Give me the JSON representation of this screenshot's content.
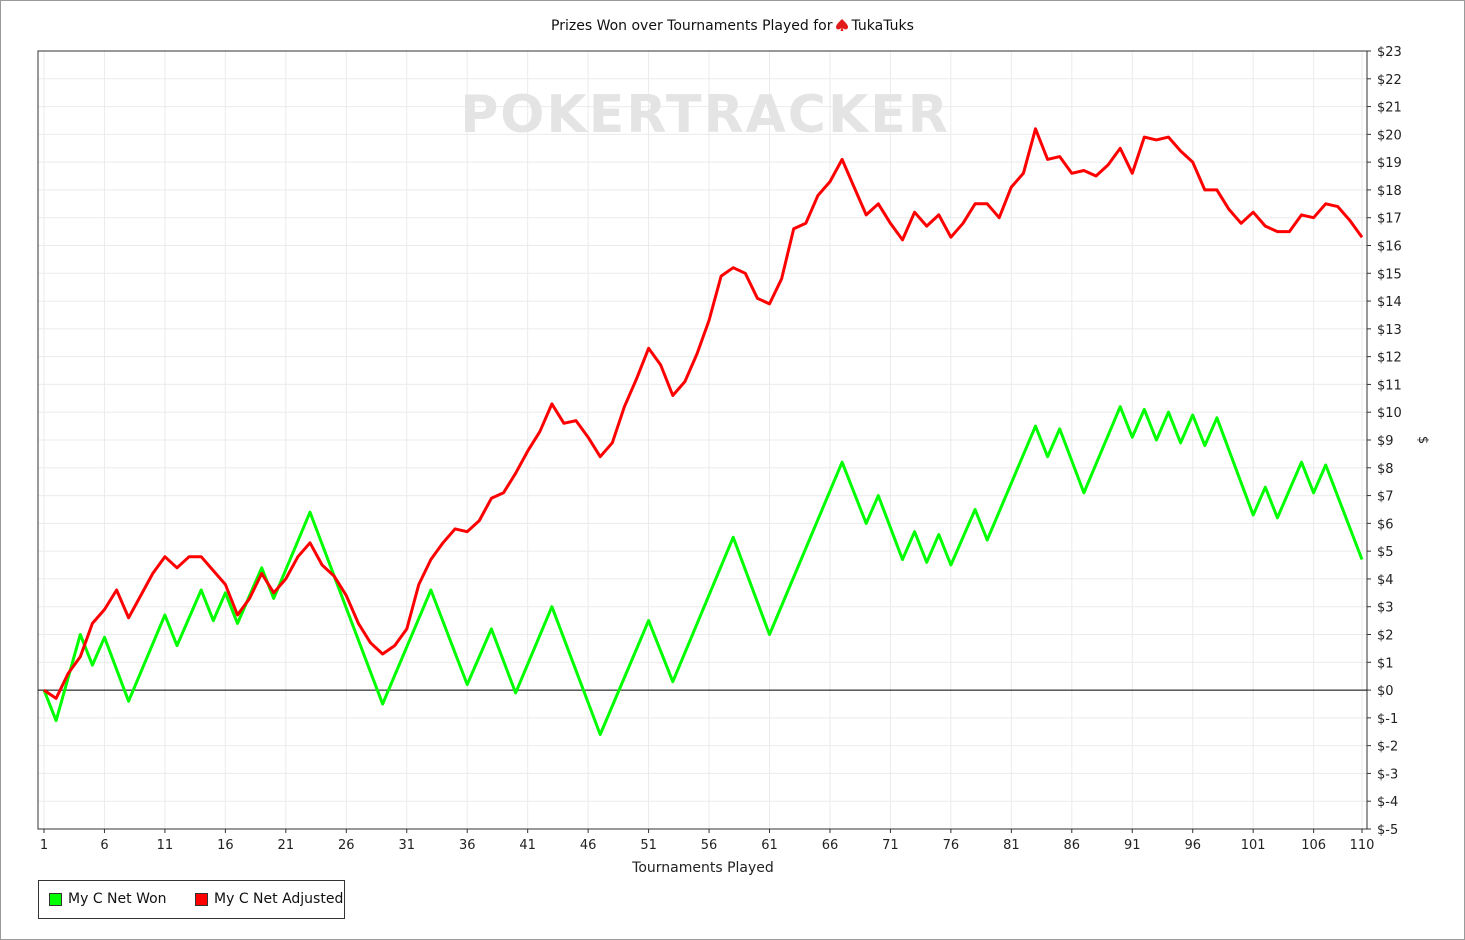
{
  "chart_data": {
    "type": "line",
    "title_prefix": "Prizes Won over Tournaments Played for",
    "player": "TukaTuks",
    "watermark": "POKERTRACKER",
    "xlabel": "Tournaments Played",
    "ylabel": "$",
    "xlim": [
      1,
      110
    ],
    "ylim": [
      -5,
      23
    ],
    "x_ticks": [
      "1",
      "6",
      "11",
      "16",
      "21",
      "26",
      "31",
      "36",
      "41",
      "46",
      "51",
      "56",
      "61",
      "66",
      "71",
      "76",
      "81",
      "86",
      "91",
      "96",
      "101",
      "106",
      "110"
    ],
    "y_ticks": [
      "$23",
      "$22",
      "$21",
      "$20",
      "$19",
      "$18",
      "$17",
      "$16",
      "$15",
      "$14",
      "$13",
      "$12",
      "$11",
      "$10",
      "$9",
      "$8",
      "$7",
      "$6",
      "$5",
      "$4",
      "$3",
      "$2",
      "$1",
      "$0",
      "$-1",
      "$-2",
      "$-3",
      "$-4",
      "$-5"
    ],
    "grid": true,
    "legend_position": "bottom-left",
    "series": [
      {
        "name": "My C Net Won",
        "color": "#00ff00",
        "points": [
          [
            1,
            0
          ],
          [
            2,
            -1.1
          ],
          [
            4,
            2
          ],
          [
            5,
            0.9
          ],
          [
            6,
            1.9
          ],
          [
            8,
            -0.4
          ],
          [
            11,
            2.7
          ],
          [
            12,
            1.6
          ],
          [
            14,
            3.6
          ],
          [
            15,
            2.5
          ],
          [
            16,
            3.5
          ],
          [
            17,
            2.4
          ],
          [
            19,
            4.4
          ],
          [
            20,
            3.3
          ],
          [
            23,
            6.4
          ],
          [
            29,
            -0.5
          ],
          [
            33,
            3.6
          ],
          [
            36,
            0.2
          ],
          [
            38,
            2.2
          ],
          [
            40,
            -0.1
          ],
          [
            43,
            3
          ],
          [
            47,
            -1.6
          ],
          [
            51,
            2.5
          ],
          [
            53,
            0.3
          ],
          [
            58,
            5.5
          ],
          [
            61,
            2
          ],
          [
            67,
            8.2
          ],
          [
            69,
            6
          ],
          [
            70,
            7
          ],
          [
            72,
            4.7
          ],
          [
            73,
            5.7
          ],
          [
            74,
            4.6
          ],
          [
            75,
            5.6
          ],
          [
            76,
            4.5
          ],
          [
            78,
            6.5
          ],
          [
            79,
            5.4
          ],
          [
            83,
            9.5
          ],
          [
            84,
            8.4
          ],
          [
            85,
            9.4
          ],
          [
            87,
            7.1
          ],
          [
            90,
            10.2
          ],
          [
            91,
            9.1
          ],
          [
            92,
            10.1
          ],
          [
            93,
            9
          ],
          [
            94,
            10
          ],
          [
            95,
            8.9
          ],
          [
            96,
            9.9
          ],
          [
            97,
            8.8
          ],
          [
            98,
            9.8
          ],
          [
            101,
            6.3
          ],
          [
            102,
            7.3
          ],
          [
            103,
            6.2
          ],
          [
            105,
            8.2
          ],
          [
            106,
            7.1
          ],
          [
            107,
            8.1
          ],
          [
            110,
            4.7
          ]
        ]
      },
      {
        "name": "My C Net Adjusted",
        "color": "#ff0000",
        "points": [
          [
            1,
            0
          ],
          [
            2,
            -0.3
          ],
          [
            3,
            0.6
          ],
          [
            4,
            1.2
          ],
          [
            5,
            2.4
          ],
          [
            6,
            2.9
          ],
          [
            7,
            3.6
          ],
          [
            8,
            2.6
          ],
          [
            9,
            3.4
          ],
          [
            10,
            4.2
          ],
          [
            11,
            4.8
          ],
          [
            12,
            4.4
          ],
          [
            13,
            4.8
          ],
          [
            14,
            4.8
          ],
          [
            15,
            4.3
          ],
          [
            16,
            3.8
          ],
          [
            17,
            2.7
          ],
          [
            18,
            3.3
          ],
          [
            19,
            4.2
          ],
          [
            20,
            3.5
          ],
          [
            21,
            4
          ],
          [
            22,
            4.8
          ],
          [
            23,
            5.3
          ],
          [
            24,
            4.5
          ],
          [
            25,
            4.1
          ],
          [
            26,
            3.4
          ],
          [
            27,
            2.4
          ],
          [
            28,
            1.7
          ],
          [
            29,
            1.3
          ],
          [
            30,
            1.6
          ],
          [
            31,
            2.2
          ],
          [
            32,
            3.8
          ],
          [
            33,
            4.7
          ],
          [
            34,
            5.3
          ],
          [
            35,
            5.8
          ],
          [
            36,
            5.7
          ],
          [
            37,
            6.1
          ],
          [
            38,
            6.9
          ],
          [
            39,
            7.1
          ],
          [
            40,
            7.8
          ],
          [
            41,
            8.6
          ],
          [
            42,
            9.3
          ],
          [
            43,
            10.3
          ],
          [
            44,
            9.6
          ],
          [
            45,
            9.7
          ],
          [
            46,
            9.1
          ],
          [
            47,
            8.4
          ],
          [
            48,
            8.9
          ],
          [
            49,
            10.2
          ],
          [
            50,
            11.2
          ],
          [
            51,
            12.3
          ],
          [
            52,
            11.7
          ],
          [
            53,
            10.6
          ],
          [
            54,
            11.1
          ],
          [
            55,
            12.1
          ],
          [
            56,
            13.3
          ],
          [
            57,
            14.9
          ],
          [
            58,
            15.2
          ],
          [
            59,
            15
          ],
          [
            60,
            14.1
          ],
          [
            61,
            13.9
          ],
          [
            62,
            14.8
          ],
          [
            63,
            16.6
          ],
          [
            64,
            16.8
          ],
          [
            65,
            17.8
          ],
          [
            66,
            18.3
          ],
          [
            67,
            19.1
          ],
          [
            68,
            18.1
          ],
          [
            69,
            17.1
          ],
          [
            70,
            17.5
          ],
          [
            71,
            16.8
          ],
          [
            72,
            16.2
          ],
          [
            73,
            17.2
          ],
          [
            74,
            16.7
          ],
          [
            75,
            17.1
          ],
          [
            76,
            16.3
          ],
          [
            77,
            16.8
          ],
          [
            78,
            17.5
          ],
          [
            79,
            17.5
          ],
          [
            80,
            17
          ],
          [
            81,
            18.1
          ],
          [
            82,
            18.6
          ],
          [
            83,
            20.2
          ],
          [
            84,
            19.1
          ],
          [
            85,
            19.2
          ],
          [
            86,
            18.6
          ],
          [
            87,
            18.7
          ],
          [
            88,
            18.5
          ],
          [
            89,
            18.9
          ],
          [
            90,
            19.5
          ],
          [
            91,
            18.6
          ],
          [
            92,
            19.9
          ],
          [
            93,
            19.8
          ],
          [
            94,
            19.9
          ],
          [
            95,
            19.4
          ],
          [
            96,
            19
          ],
          [
            97,
            18
          ],
          [
            98,
            18
          ],
          [
            99,
            17.3
          ],
          [
            100,
            16.8
          ],
          [
            101,
            17.2
          ],
          [
            102,
            16.7
          ],
          [
            103,
            16.5
          ],
          [
            104,
            16.5
          ],
          [
            105,
            17.1
          ],
          [
            106,
            17
          ],
          [
            107,
            17.5
          ],
          [
            108,
            17.4
          ],
          [
            109,
            16.9
          ],
          [
            110,
            16.3
          ]
        ]
      }
    ]
  }
}
